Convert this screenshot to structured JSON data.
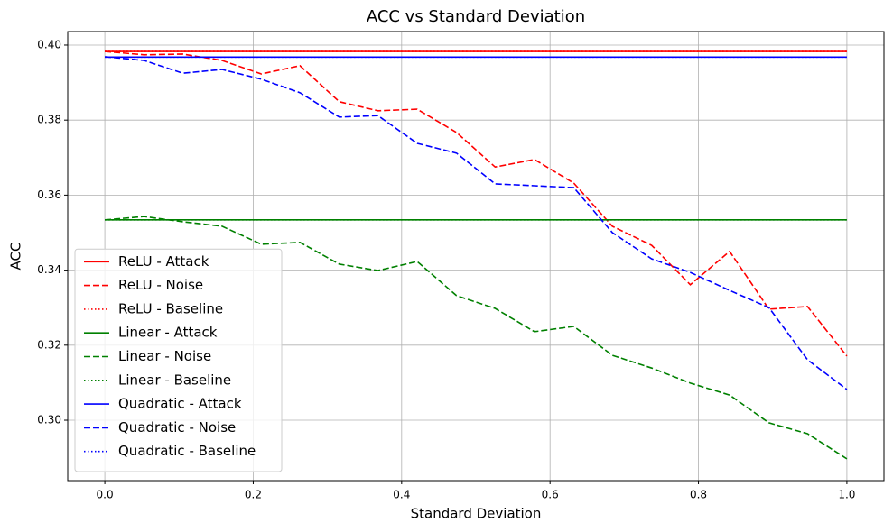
{
  "chart_data": {
    "type": "line",
    "title": "ACC vs Standard Deviation",
    "xlabel": "Standard Deviation",
    "ylabel": "ACC",
    "x": [
      0,
      0.053,
      0.105,
      0.158,
      0.211,
      0.263,
      0.316,
      0.368,
      0.421,
      0.474,
      0.526,
      0.579,
      0.632,
      0.684,
      0.737,
      0.789,
      0.842,
      0.895,
      0.947,
      1.0
    ],
    "series": [
      {
        "name": "ReLU - Attack",
        "color": "#ff0000",
        "linestyle": "solid",
        "values": [
          0.3983,
          0.3983,
          0.3983,
          0.3983,
          0.3983,
          0.3983,
          0.3983,
          0.3983,
          0.3983,
          0.3983,
          0.3983,
          0.3983,
          0.3983,
          0.3983,
          0.3983,
          0.3983,
          0.3983,
          0.3983,
          0.3983,
          0.3983
        ]
      },
      {
        "name": "ReLU - Noise",
        "color": "#ff0000",
        "linestyle": "dashed",
        "values": [
          0.3983,
          0.3974,
          0.3976,
          0.3959,
          0.3923,
          0.3945,
          0.3849,
          0.3825,
          0.3829,
          0.3767,
          0.3675,
          0.3695,
          0.3632,
          0.3517,
          0.3466,
          0.3361,
          0.345,
          0.3296,
          0.3303,
          0.3171
        ]
      },
      {
        "name": "ReLU - Baseline",
        "color": "#ff0000",
        "linestyle": "dotted",
        "values": [
          0.3983,
          0.3983,
          0.3983,
          0.3983,
          0.3983,
          0.3983,
          0.3983,
          0.3983,
          0.3983,
          0.3983,
          0.3983,
          0.3983,
          0.3983,
          0.3983,
          0.3983,
          0.3983,
          0.3983,
          0.3983,
          0.3983,
          0.3983
        ]
      },
      {
        "name": "Linear - Attack",
        "color": "#008000",
        "linestyle": "solid",
        "values": [
          0.3534,
          0.3534,
          0.3534,
          0.3534,
          0.3534,
          0.3534,
          0.3534,
          0.3534,
          0.3534,
          0.3534,
          0.3534,
          0.3534,
          0.3534,
          0.3534,
          0.3534,
          0.3534,
          0.3534,
          0.3534,
          0.3534,
          0.3534
        ]
      },
      {
        "name": "Linear - Noise",
        "color": "#008000",
        "linestyle": "dashed",
        "values": [
          0.3534,
          0.3543,
          0.3529,
          0.3517,
          0.3469,
          0.3474,
          0.3416,
          0.3399,
          0.3423,
          0.3332,
          0.3298,
          0.3236,
          0.325,
          0.3173,
          0.3139,
          0.3099,
          0.3067,
          0.2993,
          0.2964,
          0.2897
        ]
      },
      {
        "name": "Linear - Baseline",
        "color": "#008000",
        "linestyle": "dotted",
        "values": [
          0.3534,
          0.3534,
          0.3534,
          0.3534,
          0.3534,
          0.3534,
          0.3534,
          0.3534,
          0.3534,
          0.3534,
          0.3534,
          0.3534,
          0.3534,
          0.3534,
          0.3534,
          0.3534,
          0.3534,
          0.3534,
          0.3534,
          0.3534
        ]
      },
      {
        "name": "Quadratic - Attack",
        "color": "#0000ff",
        "linestyle": "solid",
        "values": [
          0.3968,
          0.3968,
          0.3968,
          0.3968,
          0.3968,
          0.3968,
          0.3968,
          0.3968,
          0.3968,
          0.3968,
          0.3968,
          0.3968,
          0.3968,
          0.3968,
          0.3968,
          0.3968,
          0.3968,
          0.3968,
          0.3968,
          0.3968
        ]
      },
      {
        "name": "Quadratic - Noise",
        "color": "#0000ff",
        "linestyle": "dashed",
        "values": [
          0.3969,
          0.3959,
          0.3925,
          0.3935,
          0.3909,
          0.3873,
          0.3808,
          0.3812,
          0.3738,
          0.3712,
          0.363,
          0.3625,
          0.362,
          0.35,
          0.343,
          0.3394,
          0.3346,
          0.33,
          0.3161,
          0.3082
        ]
      },
      {
        "name": "Quadratic - Baseline",
        "color": "#0000ff",
        "linestyle": "dotted",
        "values": [
          0.3968,
          0.3968,
          0.3968,
          0.3968,
          0.3968,
          0.3968,
          0.3968,
          0.3968,
          0.3968,
          0.3968,
          0.3968,
          0.3968,
          0.3968,
          0.3968,
          0.3968,
          0.3968,
          0.3968,
          0.3968,
          0.3968,
          0.3968
        ]
      }
    ],
    "xlim": [
      -0.05,
      1.05
    ],
    "ylim": [
      0.2839,
      0.4036
    ],
    "xticks": [
      {
        "value": 0,
        "label": "0.0"
      },
      0.2,
      0.4,
      0.6,
      0.8,
      {
        "value": 1,
        "label": "1.0"
      }
    ],
    "yticks": [
      {
        "value": 0.3,
        "label": "0.30"
      },
      0.32,
      0.34,
      0.36,
      0.38,
      {
        "value": 0.4,
        "label": "0.40"
      }
    ],
    "grid": true,
    "legend": "lower left"
  }
}
